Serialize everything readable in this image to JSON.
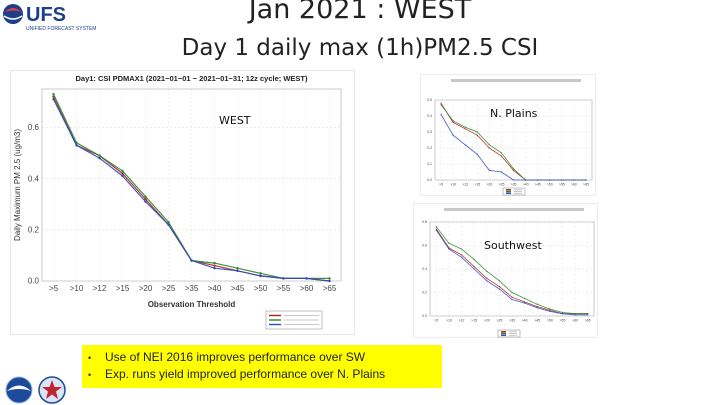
{
  "header": {
    "logo_text": "UFS",
    "logo_sub": "UNIFIED FORECAST SYSTEM",
    "title_line1": "Jan 2021 :  WEST",
    "title_line2": "Day 1  daily max (1h)PM2.5 CSI"
  },
  "region_labels": {
    "west": "WEST",
    "n_plains": "N. Plains",
    "southwest": "Southwest"
  },
  "notes": [
    "Use of NEI 2016 improves performance over SW",
    "Exp. runs yield  improved performance over N. Plains"
  ],
  "bullet": "•",
  "colors": {
    "highlight": "#ffff00",
    "series": [
      "#b02020",
      "#2a8a2a",
      "#3048c0"
    ]
  },
  "chart_data": [
    {
      "type": "line",
      "title": "Day1: CSI PDMAX1 (2021−01−01 − 2021−01−31; 12z cycle; WEST)",
      "xlabel": "Observation Threshold",
      "ylabel": "Daily Maximum PM 2.5 (ug/m3)",
      "categories": [
        ">5",
        ">10",
        ">12",
        ">15",
        ">20",
        ">25",
        ">35",
        ">40",
        ">45",
        ">50",
        ">55",
        ">60",
        ">65"
      ],
      "ylim": [
        0,
        0.75
      ],
      "yticks": [
        0.0,
        0.2,
        0.4,
        0.6
      ],
      "ytick_labels": [
        "0.0",
        "0.2",
        "0.4",
        "0.6"
      ],
      "grid": true,
      "legend": "bottom-right",
      "series": [
        {
          "values": [
            0.72,
            0.53,
            0.49,
            0.42,
            0.32,
            0.22,
            0.08,
            0.06,
            0.04,
            0.02,
            0.01,
            0.01,
            0.0
          ]
        },
        {
          "values": [
            0.73,
            0.54,
            0.49,
            0.43,
            0.33,
            0.23,
            0.08,
            0.07,
            0.05,
            0.03,
            0.01,
            0.01,
            0.01
          ]
        },
        {
          "values": [
            0.71,
            0.53,
            0.48,
            0.41,
            0.31,
            0.22,
            0.08,
            0.05,
            0.04,
            0.02,
            0.01,
            0.01,
            0.0
          ]
        }
      ]
    },
    {
      "type": "line",
      "region": "N. Plains",
      "categories": [
        ">5",
        ">10",
        ">12",
        ">15",
        ">20",
        ">25",
        ">35",
        ">40",
        ">45",
        ">50",
        ">55",
        ">60",
        ">65"
      ],
      "ylim": [
        0,
        0.5
      ],
      "yticks": [
        0.0,
        0.1,
        0.2,
        0.3,
        0.4,
        0.5
      ],
      "ytick_labels": [
        "0.0",
        "0.1",
        "0.2",
        "0.3",
        "0.4",
        "0.5"
      ],
      "grid": true,
      "legend": "bottom-center",
      "series": [
        {
          "values": [
            0.48,
            0.36,
            0.32,
            0.28,
            0.2,
            0.15,
            0.06,
            0.0,
            0.0,
            0.0,
            0.0,
            0.0,
            0.0
          ]
        },
        {
          "values": [
            0.47,
            0.37,
            0.33,
            0.3,
            0.22,
            0.17,
            0.07,
            0.0,
            0.0,
            0.0,
            0.0,
            0.0,
            0.0
          ]
        },
        {
          "values": [
            0.41,
            0.28,
            0.22,
            0.16,
            0.06,
            0.05,
            0.0,
            0.0,
            0.0,
            0.0,
            0.0,
            0.0,
            0.0
          ]
        }
      ]
    },
    {
      "type": "line",
      "region": "Southwest",
      "categories": [
        ">5",
        ">10",
        ">12",
        ">15",
        ">20",
        ">25",
        ">35",
        ">40",
        ">45",
        ">50",
        ">55",
        ">60",
        ">65"
      ],
      "ylim": [
        0,
        0.8
      ],
      "yticks": [
        0.0,
        0.2,
        0.4,
        0.6,
        0.8
      ],
      "ytick_labels": [
        "0.0",
        "0.2",
        "0.4",
        "0.6",
        "0.8"
      ],
      "grid": true,
      "legend": "bottom-center",
      "series": [
        {
          "values": [
            0.74,
            0.58,
            0.52,
            0.42,
            0.32,
            0.25,
            0.16,
            0.12,
            0.08,
            0.05,
            0.02,
            0.02,
            0.02
          ]
        },
        {
          "values": [
            0.76,
            0.62,
            0.57,
            0.48,
            0.38,
            0.3,
            0.2,
            0.15,
            0.1,
            0.06,
            0.03,
            0.02,
            0.02
          ]
        },
        {
          "values": [
            0.73,
            0.57,
            0.5,
            0.4,
            0.3,
            0.23,
            0.14,
            0.11,
            0.07,
            0.04,
            0.02,
            0.01,
            0.01
          ]
        }
      ]
    }
  ]
}
